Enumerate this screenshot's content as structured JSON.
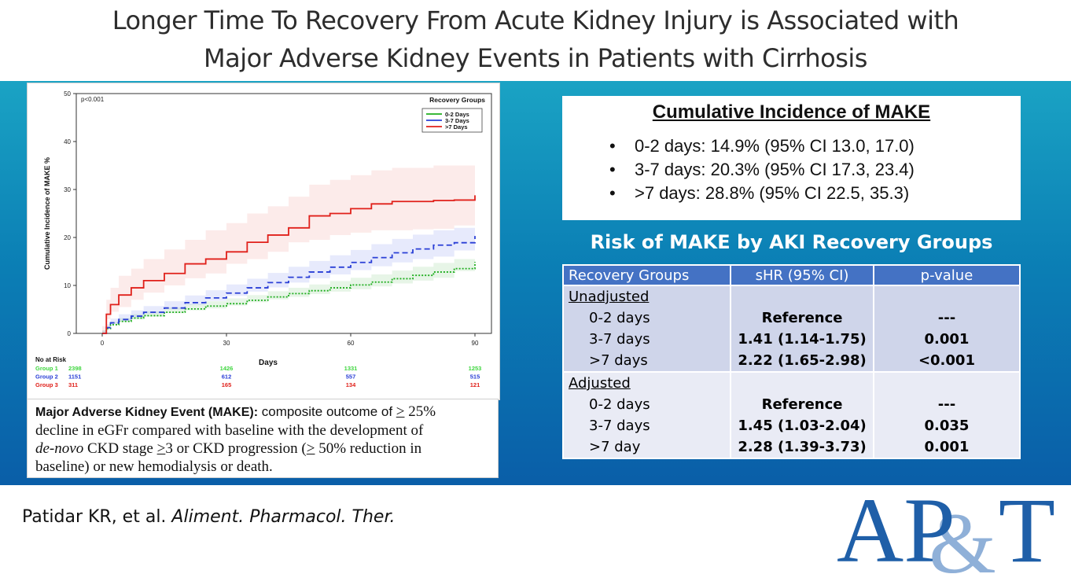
{
  "header": {
    "title_line1": "Longer Time To Recovery From Acute Kidney Injury is Associated with",
    "title_line2": "Major Adverse Kidney Events in Patients with Cirrhosis"
  },
  "chart_data": {
    "type": "line",
    "ylabel": "Cumulative Incidence of MAKE %",
    "xlabel": "Days",
    "x_ticks": [
      "0",
      "30",
      "60",
      "90"
    ],
    "y_ticks": [
      "0",
      "10",
      "20",
      "30",
      "40",
      "50"
    ],
    "xlim": [
      0,
      90
    ],
    "ylim": [
      0,
      50
    ],
    "pvalue_text": "p<0.001",
    "legend_title": "Recovery Groups",
    "legend_position": "top-right",
    "series": [
      {
        "name": "0-2 Days",
        "color": "#1fae1f",
        "style": "dotted",
        "x": [
          0,
          1,
          2,
          4,
          7,
          10,
          15,
          20,
          25,
          30,
          35,
          40,
          45,
          50,
          55,
          60,
          65,
          70,
          75,
          80,
          85,
          90
        ],
        "y": [
          0,
          1.0,
          1.8,
          2.5,
          3.2,
          3.7,
          4.4,
          5.1,
          5.7,
          6.2,
          6.9,
          7.6,
          8.3,
          8.9,
          9.5,
          10.1,
          10.7,
          11.4,
          12.1,
          12.8,
          13.5,
          14.9
        ],
        "ci_low": [
          0,
          0.6,
          1.2,
          1.8,
          2.4,
          2.9,
          3.5,
          4.2,
          4.8,
          5.2,
          5.8,
          6.5,
          7.1,
          7.6,
          8.2,
          8.7,
          9.2,
          9.8,
          10.4,
          11.0,
          11.6,
          13.0
        ],
        "ci_high": [
          0,
          1.5,
          2.4,
          3.2,
          4.0,
          4.6,
          5.4,
          6.1,
          6.7,
          7.3,
          8.0,
          8.8,
          9.5,
          10.2,
          10.9,
          11.6,
          12.3,
          13.1,
          13.9,
          14.7,
          15.5,
          17.0
        ]
      },
      {
        "name": "3-7 Days",
        "color": "#2a3fd6",
        "style": "dashed",
        "x": [
          0,
          1,
          2,
          4,
          7,
          10,
          15,
          20,
          25,
          30,
          35,
          40,
          45,
          50,
          55,
          60,
          65,
          70,
          75,
          80,
          85,
          90
        ],
        "y": [
          0,
          1.2,
          2.2,
          2.9,
          3.6,
          4.4,
          5.3,
          6.4,
          7.4,
          8.4,
          9.5,
          10.6,
          11.7,
          12.8,
          13.8,
          14.8,
          15.8,
          16.8,
          17.6,
          18.4,
          18.9,
          20.3
        ],
        "ci_low": [
          0,
          0.6,
          1.4,
          2.0,
          2.6,
          3.3,
          4.1,
          5.0,
          5.9,
          6.8,
          7.8,
          8.7,
          9.6,
          10.6,
          11.5,
          12.3,
          13.2,
          14.0,
          14.8,
          15.5,
          16.0,
          17.3
        ],
        "ci_high": [
          0,
          1.9,
          3.1,
          4.0,
          4.8,
          5.7,
          6.7,
          7.9,
          9.0,
          10.2,
          11.4,
          12.6,
          13.9,
          15.1,
          16.3,
          17.4,
          18.6,
          19.7,
          20.6,
          21.5,
          22.0,
          23.4
        ]
      },
      {
        "name": ">7 Days",
        "color": "#e0201a",
        "style": "solid",
        "x": [
          0,
          1,
          2,
          4,
          7,
          10,
          15,
          20,
          25,
          30,
          35,
          40,
          45,
          50,
          55,
          60,
          65,
          70,
          75,
          80,
          85,
          90
        ],
        "y": [
          0,
          4.0,
          6.0,
          8.0,
          9.5,
          11.0,
          12.5,
          14.5,
          15.5,
          17.0,
          19.0,
          20.5,
          22.0,
          24.5,
          25.0,
          26.0,
          27.0,
          27.5,
          27.5,
          27.7,
          27.8,
          28.8
        ],
        "ci_low": [
          0,
          1.5,
          3.0,
          4.5,
          5.5,
          7.0,
          8.5,
          10.0,
          11.5,
          12.5,
          14.5,
          15.5,
          17.0,
          19.0,
          19.5,
          20.5,
          21.0,
          21.5,
          21.5,
          21.7,
          21.8,
          22.5
        ],
        "ci_high": [
          0,
          7.0,
          9.5,
          12.0,
          13.5,
          15.5,
          17.5,
          19.5,
          21.5,
          23.0,
          25.0,
          26.5,
          28.5,
          31.0,
          32.0,
          33.0,
          34.0,
          34.5,
          34.5,
          35.0,
          35.0,
          35.3
        ]
      }
    ],
    "risk_table": {
      "title": "No at Risk",
      "rows": [
        {
          "label": "Group 1",
          "color": "#3fd63f",
          "values": [
            "2398",
            "1426",
            "1331",
            "1253"
          ]
        },
        {
          "label": "Group 2",
          "color": "#2a3fd6",
          "values": [
            "1151",
            "612",
            "557",
            "515"
          ]
        },
        {
          "label": "Group 3",
          "color": "#e0201a",
          "values": [
            "311",
            "165",
            "134",
            "121"
          ]
        }
      ]
    }
  },
  "definition": {
    "term": "Major Adverse Kidney Event (MAKE):",
    "t1": " composite outcome of ",
    "gte1": ">",
    "t2": " 25%",
    "t3": "decline in eGFr compared with baseline with the development of",
    "denovo": "de-novo",
    "t4": " CKD stage ",
    "gte2": ">",
    "t5": "3 or CKD progression (",
    "gte3": ">",
    "t6": " 50% reduction in",
    "t7": "baseline) or new hemodialysis or death."
  },
  "cumulative": {
    "title": "Cumulative Incidence of MAKE",
    "items": [
      "0-2 days: 14.9% (95% CI 13.0, 17.0)",
      "3-7 days: 20.3% (95% CI 17.3, 23.4)",
      ">7 days: 28.8% (95% CI 22.5, 35.3)"
    ]
  },
  "risk": {
    "title": "Risk of MAKE by AKI Recovery Groups",
    "headers": [
      "Recovery Groups",
      "sHR (95% CI)",
      "p-value"
    ],
    "unadjusted": {
      "label": "Unadjusted",
      "rows": [
        {
          "group": "0-2 days",
          "shr": "Reference",
          "p": "---"
        },
        {
          "group": "3-7 days",
          "shr": "1.41 (1.14-1.75)",
          "p": "0.001"
        },
        {
          "group": ">7 days",
          "shr": "2.22 (1.65-2.98)",
          "p": "<0.001"
        }
      ]
    },
    "adjusted": {
      "label": "Adjusted",
      "rows": [
        {
          "group": "0-2 days",
          "shr": "Reference",
          "p": "---"
        },
        {
          "group": "3-7 days",
          "shr": "1.45 (1.03-2.04)",
          "p": "0.035"
        },
        {
          "group": ">7 day",
          "shr": "2.28 (1.39-3.73)",
          "p": "0.001"
        }
      ]
    }
  },
  "citation": {
    "authors": "Patidar KR, et al. ",
    "journal": "Aliment. Pharmacol. Ther."
  },
  "logo": {
    "text_ap": "AP",
    "text_amp": "&",
    "text_t": "T",
    "color_main": "#1f5fa8",
    "color_amp": "#8fb0d8"
  }
}
